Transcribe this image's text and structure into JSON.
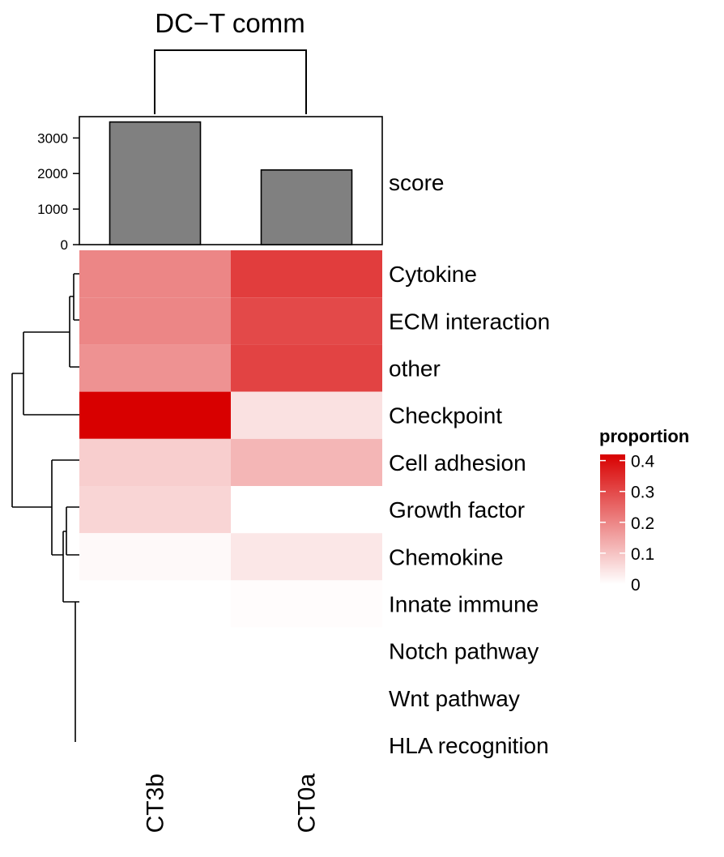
{
  "chart_data": {
    "type": "heatmap",
    "title": "DC−T comm",
    "columns": [
      "CT3b",
      "CT0a"
    ],
    "rows": [
      "Cytokine",
      "ECM interaction",
      "other",
      "Checkpoint",
      "Cell adhesion",
      "Growth factor",
      "Chemokine",
      "Innate immune",
      "Notch pathway",
      "Wnt pathway",
      "HLA recognition"
    ],
    "values": [
      [
        0.2,
        0.32
      ],
      [
        0.2,
        0.3
      ],
      [
        0.18,
        0.31
      ],
      [
        0.42,
        0.05
      ],
      [
        0.08,
        0.12
      ],
      [
        0.07,
        0.0
      ],
      [
        0.01,
        0.04
      ],
      [
        0.0,
        0.005
      ],
      [
        0.0,
        0.0
      ],
      [
        0.0,
        0.0
      ],
      [
        0.0,
        0.0
      ]
    ],
    "top_annotation": {
      "type": "bar",
      "label": "score",
      "values": [
        3450,
        2100
      ],
      "ylim": [
        0,
        3600
      ],
      "ticks": [
        0,
        1000,
        2000,
        3000
      ],
      "bar_color": "#808080"
    },
    "legend": {
      "title": "proportion",
      "position": "right",
      "ticks": [
        0,
        0.1,
        0.2,
        0.3,
        0.4
      ],
      "tick_labels": [
        "0",
        "0.1",
        "0.2",
        "0.3",
        "0.4"
      ],
      "range": [
        0,
        0.42
      ],
      "color_low": "#ffffff",
      "color_high": "#d80000"
    },
    "row_dendrogram": true,
    "column_dendrogram": true
  }
}
